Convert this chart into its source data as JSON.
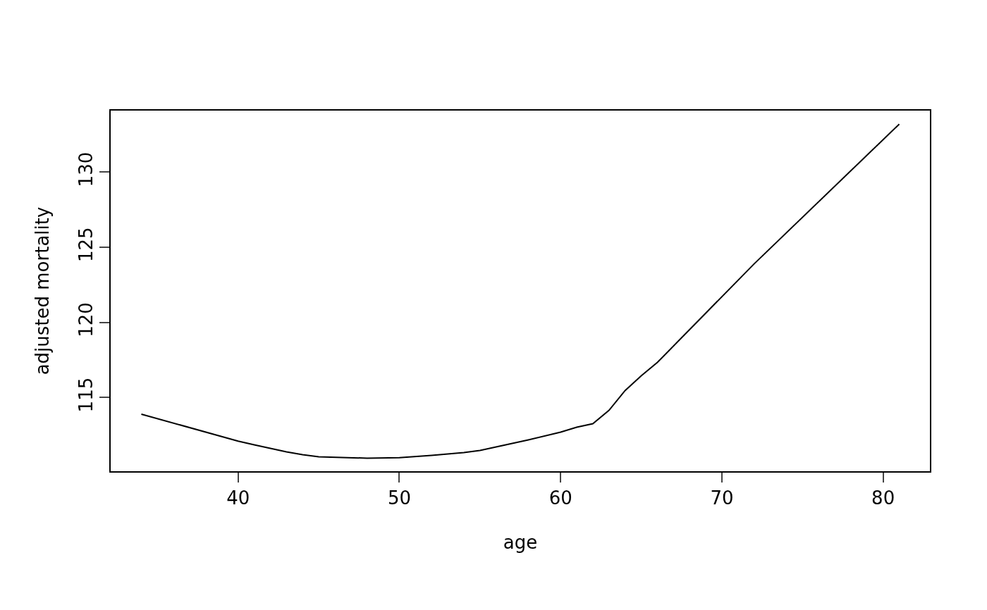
{
  "chart_data": {
    "type": "line",
    "xlabel": "age",
    "ylabel": "adjusted mortality",
    "x": [
      34,
      40,
      41,
      42,
      43,
      44,
      45,
      48,
      50,
      52,
      54,
      55,
      56,
      58,
      60,
      61,
      62,
      63,
      64,
      65,
      66,
      72,
      81
    ],
    "series": [
      {
        "color": "#000000",
        "values": [
          113.9,
          112.1,
          111.86,
          111.62,
          111.39,
          111.2,
          111.06,
          110.97,
          111.0,
          111.15,
          111.34,
          111.48,
          111.72,
          112.19,
          112.7,
          113.03,
          113.26,
          114.15,
          115.47,
          116.45,
          117.34,
          123.9,
          133.2
        ]
      }
    ],
    "xlim": [
      32.1,
      82.9
    ],
    "xticks": [
      40,
      50,
      60,
      70,
      80
    ],
    "ylim": [
      110.1,
      134.1
    ],
    "yticks": [
      115,
      120,
      125,
      130
    ],
    "line_style": "solid"
  }
}
